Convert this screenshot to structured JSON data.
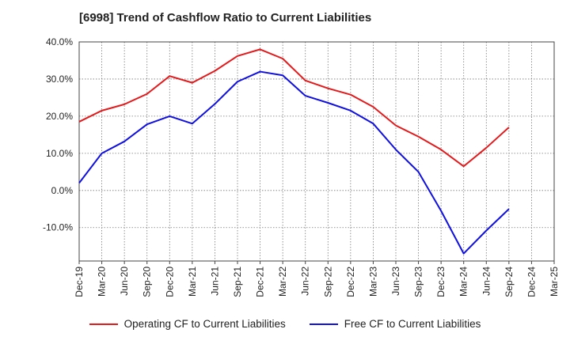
{
  "chart_data": {
    "type": "line",
    "title": "[6998]  Trend of Cashflow Ratio to Current Liabilities",
    "categories": [
      "Dec-19",
      "Mar-20",
      "Jun-20",
      "Sep-20",
      "Dec-20",
      "Mar-21",
      "Jun-21",
      "Sep-21",
      "Dec-21",
      "Mar-22",
      "Jun-22",
      "Sep-22",
      "Dec-22",
      "Mar-23",
      "Jun-23",
      "Sep-23",
      "Dec-23",
      "Mar-24",
      "Jun-24",
      "Sep-24",
      "Dec-24",
      "Mar-25"
    ],
    "ylim": [
      -19,
      40
    ],
    "yticks": [
      40,
      30,
      20,
      10,
      0,
      -10
    ],
    "ytick_labels": [
      "40.0%",
      "30.0%",
      "20.0%",
      "10.0%",
      "0.0%",
      "-10.0%"
    ],
    "grid": true,
    "legend_position": "bottom",
    "series": [
      {
        "name": "Operating CF to Current Liabilities",
        "color": "#e31a1c",
        "values": [
          18.5,
          21.5,
          23.2,
          26.0,
          30.8,
          29.0,
          32.2,
          36.2,
          38.0,
          35.5,
          29.6,
          27.5,
          25.8,
          22.5,
          17.5,
          14.5,
          11.0,
          6.5,
          11.5,
          17.0,
          null,
          null
        ]
      },
      {
        "name": "Free CF to Current Liabilities",
        "color": "#1010e0",
        "values": [
          2.0,
          10.0,
          13.2,
          17.8,
          20.0,
          18.0,
          23.3,
          29.3,
          32.0,
          31.0,
          25.5,
          23.6,
          21.5,
          18.0,
          11.0,
          5.0,
          -5.5,
          -17.0,
          -10.8,
          -5.0,
          null,
          null
        ]
      }
    ]
  }
}
